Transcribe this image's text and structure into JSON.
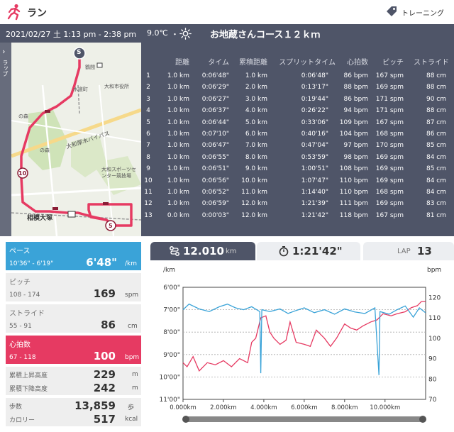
{
  "header": {
    "title": "ラン",
    "training_label": "トレーニング",
    "run_icon": "runner-icon",
    "tag_icon": "tag-icon"
  },
  "info": {
    "date": "2021/02/27 土 1:13 pm - 2:38 pm",
    "temperature": "9.0℃",
    "separator": "・",
    "weather_icon": "sun-icon",
    "course": "お地蔵さんコース１２ｋｍ"
  },
  "map": {
    "collapse_label": "ラップ",
    "start_marker": "S",
    "markers": [
      "10",
      "5"
    ],
    "labels": {
      "station1": "鶴間",
      "station2": "大和市役所",
      "area1": "水道町",
      "park1": "の森",
      "park2": "の森",
      "highway": "大和厚木バイパス",
      "sports": "大和スポーツセンター競技場",
      "station3": "相模大塚"
    }
  },
  "laps": {
    "headers": [
      "距離",
      "タイム",
      "累積距離",
      "スプリットタイム",
      "心拍数",
      "ピッチ",
      "ストライド"
    ],
    "rows": [
      [
        "1",
        "1.0 km",
        "0:06'48\"",
        "1.0 km",
        "0:06'48\"",
        "86 bpm",
        "167 spm",
        "88 cm"
      ],
      [
        "2",
        "1.0 km",
        "0:06'29\"",
        "2.0 km",
        "0:13'17\"",
        "88 bpm",
        "169 spm",
        "88 cm"
      ],
      [
        "3",
        "1.0 km",
        "0:06'27\"",
        "3.0 km",
        "0:19'44\"",
        "86 bpm",
        "171 spm",
        "90 cm"
      ],
      [
        "4",
        "1.0 km",
        "0:06'37\"",
        "4.0 km",
        "0:26'22\"",
        "94 bpm",
        "171 spm",
        "88 cm"
      ],
      [
        "5",
        "1.0 km",
        "0:06'44\"",
        "5.0 km",
        "0:33'06\"",
        "109 bpm",
        "167 spm",
        "87 cm"
      ],
      [
        "6",
        "1.0 km",
        "0:07'10\"",
        "6.0 km",
        "0:40'16\"",
        "104 bpm",
        "168 spm",
        "86 cm"
      ],
      [
        "7",
        "1.0 km",
        "0:06'47\"",
        "7.0 km",
        "0:47'04\"",
        "97 bpm",
        "170 spm",
        "85 cm"
      ],
      [
        "8",
        "1.0 km",
        "0:06'55\"",
        "8.0 km",
        "0:53'59\"",
        "98 bpm",
        "169 spm",
        "84 cm"
      ],
      [
        "9",
        "1.0 km",
        "0:06'51\"",
        "9.0 km",
        "1:00'51\"",
        "108 bpm",
        "169 spm",
        "85 cm"
      ],
      [
        "10",
        "1.0 km",
        "0:06'56\"",
        "10.0 km",
        "1:07'47\"",
        "110 bpm",
        "169 spm",
        "84 cm"
      ],
      [
        "11",
        "1.0 km",
        "0:06'52\"",
        "11.0 km",
        "1:14'40\"",
        "110 bpm",
        "168 spm",
        "84 cm"
      ],
      [
        "12",
        "1.0 km",
        "0:06'59\"",
        "12.0 km",
        "1:21'39\"",
        "111 bpm",
        "169 spm",
        "83 cm"
      ],
      [
        "13",
        "0.0 km",
        "0:00'03\"",
        "12.0 km",
        "1:21'42\"",
        "118 bpm",
        "167 spm",
        "81 cm"
      ]
    ]
  },
  "stats": {
    "pace": {
      "label": "ペース",
      "range": "10'36\" - 6'19\"",
      "value": "6'48\"",
      "unit": "/km"
    },
    "pitch": {
      "label": "ピッチ",
      "range": "108 - 174",
      "value": "169",
      "unit": "spm"
    },
    "stride": {
      "label": "ストライド",
      "range": "55 - 91",
      "value": "86",
      "unit": "cm"
    },
    "heart": {
      "label": "心拍数",
      "range": "67 - 118",
      "value": "100",
      "unit": "bpm"
    },
    "elev_up": {
      "label": "累積上昇高度",
      "value": "229",
      "unit": "m"
    },
    "elev_down": {
      "label": "累積下降高度",
      "value": "242",
      "unit": "m"
    },
    "steps": {
      "label": "歩数",
      "value": "13,859",
      "unit": "歩"
    },
    "calories": {
      "label": "カロリー",
      "value": "517",
      "unit": "kcal"
    }
  },
  "tabs": {
    "distance": {
      "value": "12.010",
      "unit": "km",
      "icon": "route-icon"
    },
    "time": {
      "value": "1:21'42\"",
      "icon": "stopwatch-icon"
    },
    "lap": {
      "label": "LAP",
      "value": "13"
    }
  },
  "chart_data": {
    "type": "line",
    "left_axis_label": "/km",
    "right_axis_label": "bpm",
    "left_ticks": [
      "6'00\"",
      "7'00\"",
      "8'00\"",
      "9'00\"",
      "10'00\"",
      "11'00\""
    ],
    "right_ticks": [
      "120",
      "110",
      "100",
      "90",
      "80",
      "70"
    ],
    "x_ticks": [
      "0.000km",
      "2.000km",
      "4.000km",
      "6.000km",
      "8.000km",
      "10.000km"
    ],
    "xlim": [
      0,
      12.01
    ],
    "ylim_left_sec": [
      360,
      660
    ],
    "ylim_right": [
      70,
      125
    ],
    "grid": true,
    "series": [
      {
        "color": "#3aa3d8",
        "values_pace_sec": [
          [
            0,
            420
          ],
          [
            0.3,
            405
          ],
          [
            0.8,
            418
          ],
          [
            1.3,
            425
          ],
          [
            1.8,
            412
          ],
          [
            2.2,
            405
          ],
          [
            2.6,
            415
          ],
          [
            3.0,
            420
          ],
          [
            3.4,
            412
          ],
          [
            3.8,
            425
          ],
          [
            3.85,
            590
          ],
          [
            3.9,
            420
          ],
          [
            4.3,
            425
          ],
          [
            4.8,
            418
          ],
          [
            5.2,
            430
          ],
          [
            5.6,
            422
          ],
          [
            6.0,
            415
          ],
          [
            6.5,
            428
          ],
          [
            7.0,
            420
          ],
          [
            7.5,
            432
          ],
          [
            8.0,
            418
          ],
          [
            8.5,
            426
          ],
          [
            9.0,
            430
          ],
          [
            9.5,
            415
          ],
          [
            9.7,
            595
          ],
          [
            9.75,
            425
          ],
          [
            10.2,
            432
          ],
          [
            10.6,
            420
          ],
          [
            11.0,
            410
          ],
          [
            11.4,
            440
          ],
          [
            11.7,
            415
          ],
          [
            12.0,
            428
          ]
        ]
      },
      {
        "color": "#e63a62",
        "values_bpm": [
          [
            0,
            88
          ],
          [
            0.2,
            86
          ],
          [
            0.5,
            91
          ],
          [
            0.8,
            84
          ],
          [
            1.2,
            88
          ],
          [
            1.6,
            87
          ],
          [
            2.0,
            89
          ],
          [
            2.4,
            86
          ],
          [
            2.8,
            90
          ],
          [
            3.2,
            88
          ],
          [
            3.4,
            98
          ],
          [
            3.6,
            100
          ],
          [
            3.85,
            110
          ],
          [
            4.1,
            111
          ],
          [
            4.3,
            103
          ],
          [
            4.5,
            100
          ],
          [
            4.8,
            97
          ],
          [
            5.1,
            99
          ],
          [
            5.3,
            108
          ],
          [
            5.6,
            98
          ],
          [
            6.0,
            97
          ],
          [
            6.3,
            96
          ],
          [
            6.6,
            104
          ],
          [
            7.0,
            100
          ],
          [
            7.3,
            96
          ],
          [
            7.6,
            100
          ],
          [
            8.0,
            107
          ],
          [
            8.3,
            105
          ],
          [
            8.6,
            104
          ],
          [
            8.9,
            106
          ],
          [
            9.3,
            108
          ],
          [
            9.6,
            109
          ],
          [
            9.9,
            112
          ],
          [
            10.3,
            111
          ],
          [
            10.6,
            112
          ],
          [
            11.0,
            113
          ],
          [
            11.3,
            115
          ],
          [
            11.6,
            116
          ],
          [
            11.8,
            118
          ],
          [
            12.0,
            118
          ]
        ]
      }
    ]
  }
}
